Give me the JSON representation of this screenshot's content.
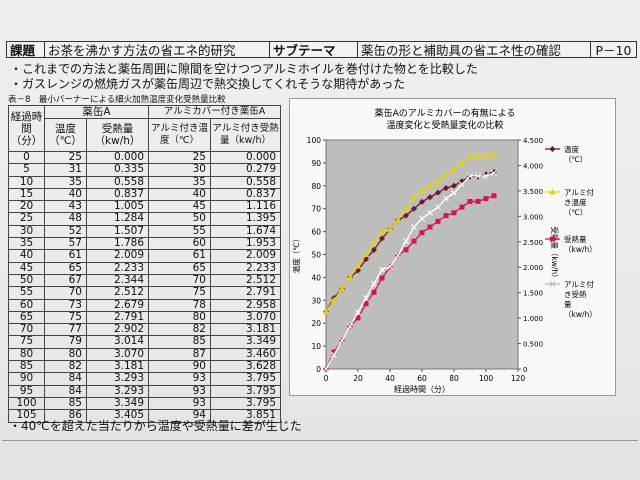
{
  "header": {
    "label": "課題",
    "title": "お茶を沸かす方法の省エネ的研究",
    "sub_label": "サブテーマ",
    "sub_title": "薬缶の形と補助具の省エネ性の確認",
    "page": "P－10"
  },
  "desc": [
    "・これまでの方法と薬缶周囲に隙間を空けつつアルミホイルを巻付けた物とを比較した",
    "・ガスレンジの燃焼ガスが薬缶周辺で熱交換してくれそうな期待があった"
  ],
  "table": {
    "title": "表－8　最小バーナーによる細火加熱温度変化受熱量比較",
    "group_a": "薬缶A",
    "group_b": "アルミカバー付き薬缶A",
    "col_time": "経過時間（分）",
    "col_temp": "温度（℃）",
    "col_heat": "受熱量（kw/h）",
    "col_al_temp": "アルミ付き温度（℃）",
    "col_al_heat": "アルミ付き受熱量（kw/h）",
    "rows": [
      [
        "0",
        "25",
        "0.000",
        "25",
        "0.000"
      ],
      [
        "5",
        "31",
        "0.335",
        "30",
        "0.279"
      ],
      [
        "10",
        "35",
        "0.558",
        "35",
        "0.558"
      ],
      [
        "15",
        "40",
        "0.837",
        "40",
        "0.837"
      ],
      [
        "20",
        "43",
        "1.005",
        "45",
        "1.116"
      ],
      [
        "25",
        "48",
        "1.284",
        "50",
        "1.395"
      ],
      [
        "30",
        "52",
        "1.507",
        "55",
        "1.674"
      ],
      [
        "35",
        "57",
        "1.786",
        "60",
        "1.953"
      ],
      [
        "40",
        "61",
        "2.009",
        "61",
        "2.009"
      ],
      [
        "45",
        "65",
        "2.233",
        "65",
        "2.233"
      ],
      [
        "50",
        "67",
        "2.344",
        "70",
        "2.512"
      ],
      [
        "55",
        "70",
        "2.512",
        "75",
        "2.791"
      ],
      [
        "60",
        "73",
        "2.679",
        "78",
        "2.958"
      ],
      [
        "65",
        "75",
        "2.791",
        "80",
        "3.070"
      ],
      [
        "70",
        "77",
        "2.902",
        "82",
        "3.181"
      ],
      [
        "75",
        "79",
        "3.014",
        "85",
        "3.349"
      ],
      [
        "80",
        "80",
        "3.070",
        "87",
        "3.460"
      ],
      [
        "85",
        "82",
        "3.181",
        "90",
        "3.628"
      ],
      [
        "90",
        "84",
        "3.293",
        "93",
        "3.795"
      ],
      [
        "95",
        "84",
        "3.293",
        "93",
        "3.795"
      ],
      [
        "100",
        "85",
        "3.349",
        "93",
        "3.795"
      ],
      [
        "105",
        "86",
        "3.405",
        "94",
        "3.851"
      ]
    ]
  },
  "chart_data": {
    "type": "line",
    "title": "薬缶Aのアルミカバーの有無による温度変化と受熱量変化の比較",
    "xlabel": "経過時間（分）",
    "ylabel_left": "温度（℃）",
    "ylabel_right": "受熱量（kw/h）",
    "xlim": [
      0,
      120
    ],
    "x_ticks": [
      0,
      20,
      40,
      60,
      80,
      100,
      120
    ],
    "ylim_left": [
      0,
      100
    ],
    "y_ticks_left": [
      0,
      10,
      20,
      30,
      40,
      50,
      60,
      70,
      80,
      90,
      100
    ],
    "ylim_right": [
      0,
      4.5
    ],
    "y_ticks_right": [
      "0",
      "0.500",
      "1.000",
      "1.500",
      "2.000",
      "2.500",
      "3.000",
      "3.500",
      "4.000",
      "4.500"
    ],
    "x": [
      0,
      5,
      10,
      15,
      20,
      25,
      30,
      35,
      40,
      45,
      50,
      55,
      60,
      65,
      70,
      75,
      80,
      85,
      90,
      95,
      100,
      105
    ],
    "series": [
      {
        "name": "温度（℃）",
        "axis": "left",
        "color": "#6b1a2e",
        "marker": "diamond",
        "values": [
          25,
          31,
          35,
          40,
          43,
          48,
          52,
          57,
          61,
          65,
          67,
          70,
          73,
          75,
          77,
          79,
          80,
          82,
          84,
          84,
          85,
          86
        ]
      },
      {
        "name": "アルミ付き温度（℃）",
        "axis": "left",
        "color": "#e6d21a",
        "marker": "triangle",
        "values": [
          25,
          30,
          35,
          40,
          45,
          50,
          55,
          60,
          61,
          65,
          70,
          75,
          78,
          80,
          82,
          85,
          87,
          90,
          93,
          93,
          93,
          94
        ]
      },
      {
        "name": "受熱量（kw/h）",
        "axis": "right",
        "color": "#d4145a",
        "marker": "square",
        "values": [
          0,
          0.335,
          0.558,
          0.837,
          1.005,
          1.284,
          1.507,
          1.786,
          2.009,
          2.233,
          2.344,
          2.512,
          2.679,
          2.791,
          2.902,
          3.014,
          3.07,
          3.181,
          3.293,
          3.293,
          3.349,
          3.405
        ]
      },
      {
        "name": "アルミ付き受熱量（kw/h）",
        "axis": "right",
        "color": "#ffffff",
        "marker": "cross",
        "values": [
          0,
          0.279,
          0.558,
          0.837,
          1.116,
          1.395,
          1.674,
          1.953,
          2.009,
          2.233,
          2.512,
          2.791,
          2.958,
          3.07,
          3.181,
          3.349,
          3.46,
          3.628,
          3.795,
          3.795,
          3.795,
          3.851
        ]
      }
    ],
    "plot_background": "#bdbdbb",
    "grid": false,
    "legend_position": "right"
  },
  "footer_note": "・40℃を超えた当たりから温度や受熱量に差が生じた"
}
